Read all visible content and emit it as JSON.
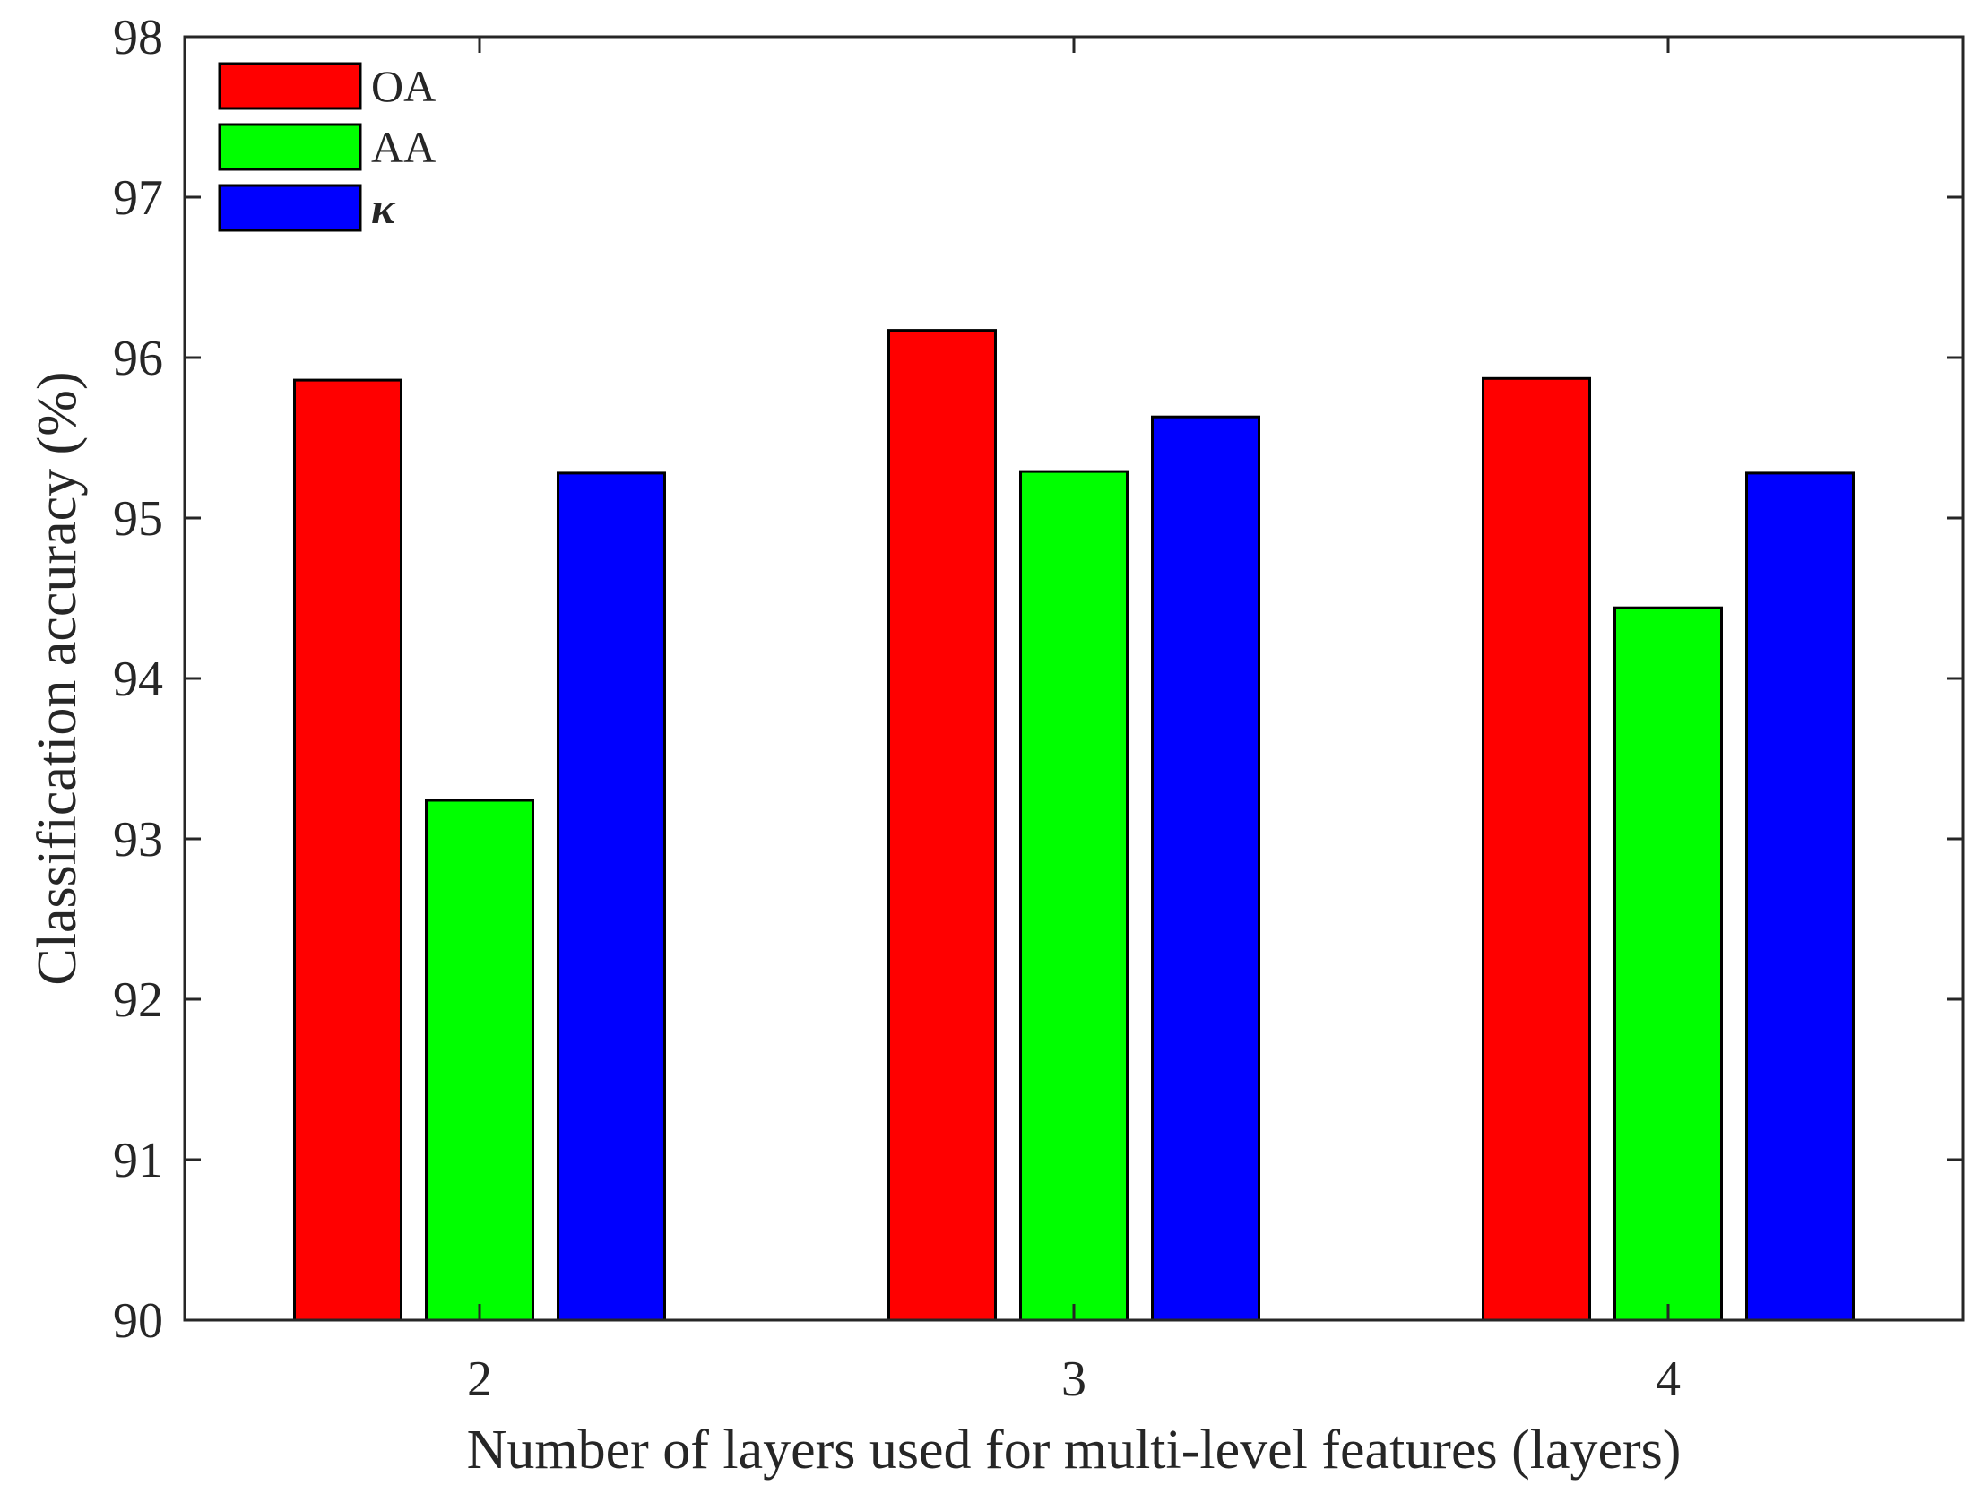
{
  "chart_data": {
    "type": "bar",
    "title": "",
    "xlabel": "Number of layers used for multi-level features (layers)",
    "ylabel": "Classification accuracy (%)",
    "categories": [
      "2",
      "3",
      "4"
    ],
    "ylim": [
      90,
      98
    ],
    "yticks": [
      "90",
      "91",
      "92",
      "93",
      "94",
      "95",
      "96",
      "97",
      "98"
    ],
    "series": [
      {
        "name": "OA",
        "color": "#ff0000",
        "values": [
          95.86,
          96.17,
          95.87
        ]
      },
      {
        "name": "AA",
        "color": "#00ff00",
        "values": [
          93.24,
          95.29,
          94.44
        ]
      },
      {
        "name": "κ",
        "color": "#0000ff",
        "values": [
          95.28,
          95.63,
          95.28
        ]
      }
    ],
    "grid": false,
    "legend_position": "top-left",
    "box": true
  }
}
